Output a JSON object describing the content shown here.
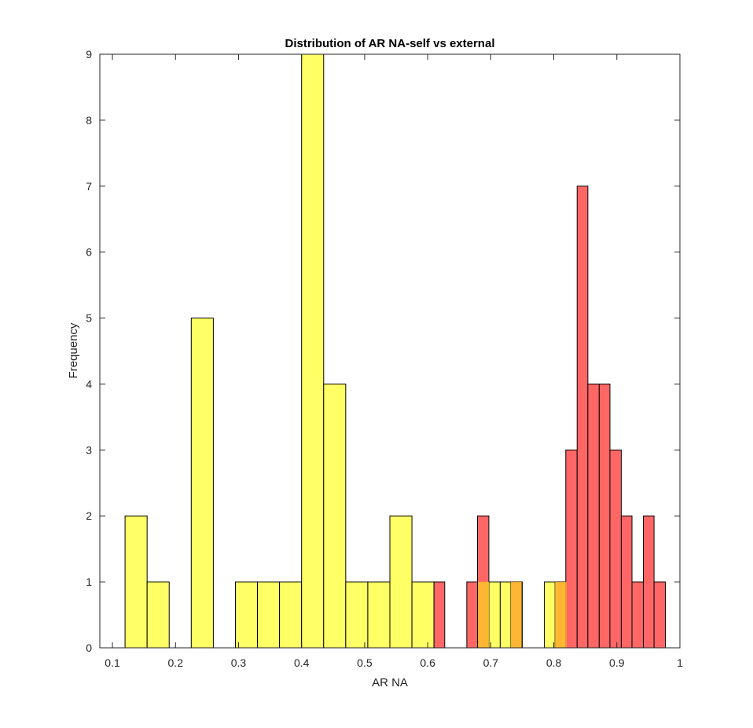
{
  "chart_data": {
    "type": "bar",
    "title": "Distribution of AR NA-self vs external",
    "xlabel": "AR NA",
    "ylabel": "Frequency",
    "xlim": [
      0.08,
      1.0
    ],
    "ylim": [
      0,
      9
    ],
    "xticks": [
      "0.1",
      "0.2",
      "0.3",
      "0.4",
      "0.5",
      "0.6",
      "0.7",
      "0.8",
      "0.9",
      "1"
    ],
    "yticks": [
      "0",
      "1",
      "2",
      "3",
      "4",
      "5",
      "6",
      "7",
      "8",
      "9"
    ],
    "grid": false,
    "colors": {
      "yellow": "#ffff66",
      "red": "#ff6666",
      "overlap": "#ffb633",
      "edge": "#000000"
    },
    "series": [
      {
        "color_key": "yellow",
        "bins": [
          {
            "x0": 0.12,
            "x1": 0.155,
            "y": 2
          },
          {
            "x0": 0.155,
            "x1": 0.19,
            "y": 1
          },
          {
            "x0": 0.225,
            "x1": 0.26,
            "y": 5
          },
          {
            "x0": 0.295,
            "x1": 0.33,
            "y": 1
          },
          {
            "x0": 0.33,
            "x1": 0.365,
            "y": 1
          },
          {
            "x0": 0.365,
            "x1": 0.4,
            "y": 1
          },
          {
            "x0": 0.4,
            "x1": 0.435,
            "y": 9
          },
          {
            "x0": 0.435,
            "x1": 0.47,
            "y": 4
          },
          {
            "x0": 0.47,
            "x1": 0.505,
            "y": 1
          },
          {
            "x0": 0.505,
            "x1": 0.54,
            "y": 1
          },
          {
            "x0": 0.54,
            "x1": 0.575,
            "y": 2
          },
          {
            "x0": 0.575,
            "x1": 0.61,
            "y": 1
          },
          {
            "x0": 0.68,
            "x1": 0.715,
            "y": 1
          },
          {
            "x0": 0.715,
            "x1": 0.75,
            "y": 1
          },
          {
            "x0": 0.785,
            "x1": 0.82,
            "y": 1
          }
        ]
      },
      {
        "color_key": "red",
        "bins": [
          {
            "x0": 0.61,
            "x1": 0.627,
            "y": 1
          },
          {
            "x0": 0.662,
            "x1": 0.679,
            "y": 1
          },
          {
            "x0": 0.679,
            "x1": 0.697,
            "y": 2
          },
          {
            "x0": 0.732,
            "x1": 0.749,
            "y": 1
          },
          {
            "x0": 0.802,
            "x1": 0.819,
            "y": 1
          },
          {
            "x0": 0.819,
            "x1": 0.837,
            "y": 3
          },
          {
            "x0": 0.837,
            "x1": 0.854,
            "y": 7
          },
          {
            "x0": 0.854,
            "x1": 0.872,
            "y": 4
          },
          {
            "x0": 0.872,
            "x1": 0.889,
            "y": 4
          },
          {
            "x0": 0.889,
            "x1": 0.907,
            "y": 3
          },
          {
            "x0": 0.907,
            "x1": 0.924,
            "y": 2
          },
          {
            "x0": 0.924,
            "x1": 0.942,
            "y": 1
          },
          {
            "x0": 0.942,
            "x1": 0.959,
            "y": 2
          },
          {
            "x0": 0.959,
            "x1": 0.977,
            "y": 1
          }
        ]
      }
    ]
  }
}
